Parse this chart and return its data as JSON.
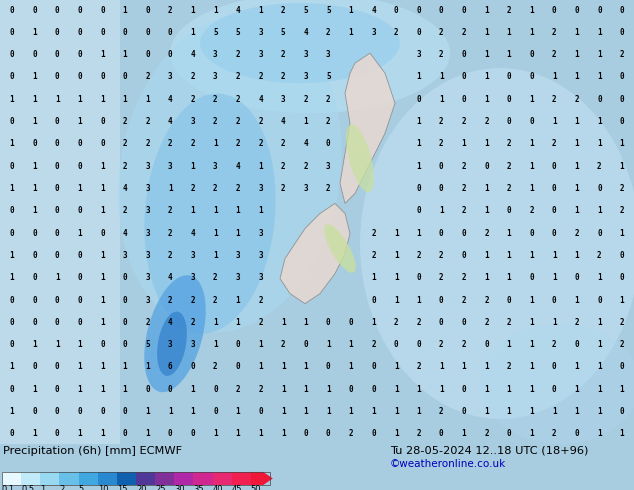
{
  "title_left": "Precipitation (6h) [mm] ECMWF",
  "title_right": "Tu 28-05-2024 12..18 UTC (18+96)",
  "credit": "©weatheronline.co.uk",
  "bg_color": "#a8cce0",
  "map_bg": "#b0d4e8",
  "bottom_bg": "#c8e4f4",
  "colorbar_colors": [
    "#e8f8ff",
    "#c0eaf8",
    "#98d8f0",
    "#68c0e8",
    "#40a8e0",
    "#2888d0",
    "#1060b0",
    "#503898",
    "#803098",
    "#b028a8",
    "#d02890",
    "#e82870",
    "#f02050",
    "#f01838"
  ],
  "colorbar_labels": [
    "0.1",
    "0.5",
    "1",
    "2",
    "5",
    "10",
    "15",
    "20",
    "25",
    "30",
    "35",
    "40",
    "45",
    "50"
  ],
  "text_color": "#000000",
  "credit_color": "#0000bb",
  "precip_numbers": {
    "seed": 7,
    "cols": 28,
    "rows": 20
  },
  "ocean_color": "#b8d8ec",
  "land_color": "#e8e0d8",
  "precip_low_color": "#c0e8f8",
  "precip_med_color": "#88c8f0",
  "precip_high_color": "#50a0e0",
  "precip_intense_color": "#2070c0",
  "green_land_color": "#c8e0a0",
  "pink_land_color": "#e8d8d0"
}
